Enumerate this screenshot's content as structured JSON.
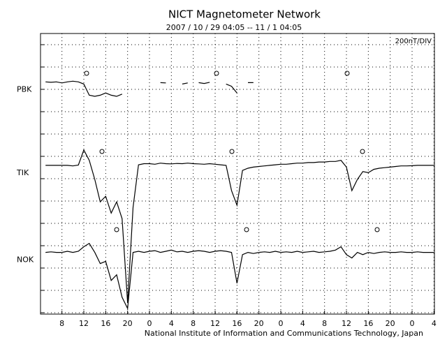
{
  "chart_data": {
    "type": "line",
    "title": "NICT Magnetometer Network",
    "subtitle": "2007 / 10 / 29  04:05 -- 11 / 1  04:05",
    "unit_label": "200nT/DIV",
    "footer": "National Institute of Information and Communications Technology, Japan",
    "xlim": [
      4.083,
      76.083
    ],
    "ylim": [
      -1250,
      1250
    ],
    "grid": true,
    "xticks": [
      8,
      12,
      16,
      20,
      {
        "value": 24,
        "label": "0"
      },
      {
        "value": 28,
        "label": "4"
      },
      {
        "value": 32,
        "label": "8"
      },
      {
        "value": 36,
        "label": "12"
      },
      {
        "value": 40,
        "label": "16"
      },
      {
        "value": 44,
        "label": "20"
      },
      {
        "value": 48,
        "label": "0"
      },
      {
        "value": 52,
        "label": "4"
      },
      {
        "value": 56,
        "label": "8"
      },
      {
        "value": 60,
        "label": "12"
      },
      {
        "value": 64,
        "label": "16"
      },
      {
        "value": 68,
        "label": "20"
      },
      {
        "value": 72,
        "label": "0"
      },
      {
        "value": 76,
        "label": "4"
      }
    ],
    "x": [
      5,
      6,
      7,
      8,
      9,
      10,
      11,
      12,
      13,
      14,
      15,
      16,
      17,
      18,
      19,
      20,
      21,
      22,
      23,
      24,
      25,
      26,
      27,
      28,
      29,
      30,
      31,
      32,
      33,
      34,
      35,
      36,
      37,
      38,
      39,
      40,
      41,
      42,
      43,
      44,
      45,
      46,
      47,
      48,
      49,
      50,
      51,
      52,
      53,
      54,
      55,
      56,
      57,
      58,
      59,
      60,
      61,
      62,
      63,
      64,
      65,
      66,
      67,
      68,
      69,
      70,
      71,
      72,
      73,
      74,
      75,
      76
    ],
    "series": [
      {
        "name": "PBK",
        "color": "#000000",
        "values": [
          819,
          815,
          819,
          810,
          819,
          825,
          819,
          800,
          700,
          690,
          700,
          720,
          700,
          690,
          710,
          null,
          null,
          null,
          null,
          null,
          null,
          812,
          810,
          null,
          null,
          800,
          810,
          null,
          812,
          805,
          815,
          null,
          null,
          800,
          780,
          720,
          null,
          812,
          812,
          null,
          null,
          null,
          null,
          null,
          null,
          null,
          null,
          null,
          null,
          null,
          null,
          null,
          null,
          null,
          null,
          null,
          null,
          null,
          null,
          null,
          null,
          null,
          null,
          null,
          null,
          null,
          null,
          null,
          null,
          null,
          null,
          null
        ]
      },
      {
        "name": "TIK",
        "color": "#000000",
        "values": [
          75,
          75,
          75,
          75,
          75,
          70,
          78,
          212,
          120,
          -50,
          -250,
          -200,
          -350,
          -250,
          -400,
          -1150,
          -300,
          80,
          90,
          90,
          85,
          95,
          90,
          88,
          92,
          90,
          95,
          90,
          88,
          85,
          90,
          85,
          80,
          75,
          -150,
          -280,
          30,
          50,
          60,
          65,
          70,
          75,
          80,
          85,
          85,
          90,
          95,
          95,
          100,
          100,
          105,
          105,
          110,
          110,
          120,
          60,
          -150,
          -50,
          20,
          10,
          40,
          50,
          55,
          60,
          65,
          70,
          70,
          72,
          75,
          75,
          75,
          75
        ]
      },
      {
        "name": "NOK",
        "color": "#000000",
        "values": [
          -700,
          -695,
          -700,
          -700,
          -690,
          -700,
          -690,
          -650,
          -620,
          -700,
          -800,
          -780,
          -950,
          -900,
          -1100,
          -1200,
          -700,
          -690,
          -700,
          -690,
          -685,
          -700,
          -690,
          -680,
          -695,
          -690,
          -700,
          -690,
          -685,
          -690,
          -700,
          -690,
          -685,
          -690,
          -700,
          -975,
          -720,
          -700,
          -710,
          -700,
          -695,
          -700,
          -690,
          -700,
          -695,
          -700,
          -690,
          -700,
          -695,
          -690,
          -700,
          -695,
          -690,
          -680,
          -650,
          -720,
          -750,
          -700,
          -720,
          -700,
          -710,
          -700,
          -695,
          -700,
          -700,
          -695,
          -700,
          -700,
          -695,
          -700,
          -700,
          -700
        ]
      }
    ]
  }
}
